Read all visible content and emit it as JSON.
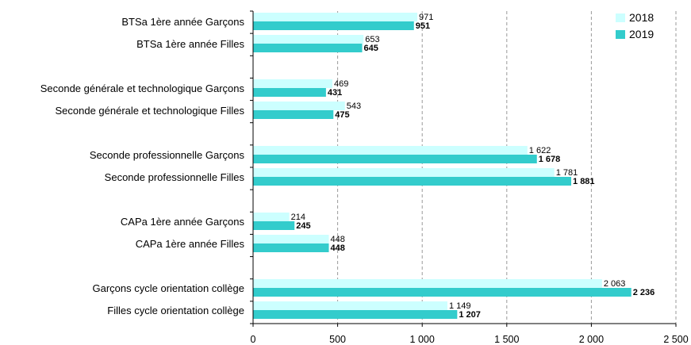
{
  "chart_data": {
    "type": "bar",
    "orientation": "horizontal",
    "categories": [
      "BTSa 1ère année Garçons",
      "BTSa 1ère année Filles",
      "Seconde générale et technologique Garçons",
      "Seconde générale et technologique Filles",
      "Seconde professionnelle Garçons",
      "Seconde professionnelle Filles",
      "CAPa 1ère année Garçons",
      "CAPa 1ère année Filles",
      "Garçons cycle orientation collège",
      "Filles cycle orientation collège"
    ],
    "series": [
      {
        "name": "2018",
        "color": "#ccffff",
        "values": [
          971,
          653,
          469,
          543,
          1622,
          1781,
          214,
          448,
          2063,
          1149
        ],
        "labels": [
          "971",
          "653",
          "469",
          "543",
          "1 622",
          "1 781",
          "214",
          "448",
          "2 063",
          "1 149"
        ]
      },
      {
        "name": "2019",
        "color": "#33cccc",
        "values": [
          951,
          645,
          431,
          475,
          1678,
          1881,
          245,
          448,
          2236,
          1207
        ],
        "labels": [
          "951",
          "645",
          "431",
          "475",
          "1 678",
          "1 881",
          "245",
          "448",
          "2 236",
          "1 207"
        ]
      }
    ],
    "xlim": [
      0,
      2500
    ],
    "xticks": [
      0,
      500,
      1000,
      1500,
      2000,
      2500
    ],
    "xtick_labels": [
      "0",
      "500",
      "1 000",
      "1 500",
      "2 000",
      "2 500"
    ],
    "grid": "vertical dashed",
    "legend_position": "top-right"
  }
}
